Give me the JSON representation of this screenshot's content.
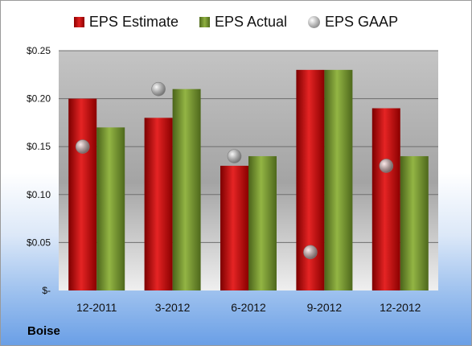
{
  "brand": "Boise",
  "chart_data": {
    "type": "bar",
    "categories": [
      "12-2011",
      "3-2012",
      "6-2012",
      "9-2012",
      "12-2012"
    ],
    "series": [
      {
        "name": "EPS Estimate",
        "values": [
          0.2,
          0.18,
          0.13,
          0.23,
          0.19
        ],
        "color": "#d11a1a"
      },
      {
        "name": "EPS Actual",
        "values": [
          0.17,
          0.21,
          0.14,
          0.23,
          0.14
        ],
        "color": "#7a9a34"
      }
    ],
    "points": {
      "name": "EPS GAAP",
      "values": [
        0.15,
        0.21,
        0.14,
        0.04,
        0.13
      ],
      "color": "#a0a0a0"
    },
    "ylim": [
      0,
      0.25
    ],
    "yticks": [
      0,
      0.05,
      0.1,
      0.15,
      0.2,
      0.25
    ],
    "ytick_labels": [
      "$-",
      "$0.05",
      "$0.10",
      "$0.15",
      "$0.20",
      "$0.25"
    ],
    "grid": true,
    "legend_position": "top"
  }
}
